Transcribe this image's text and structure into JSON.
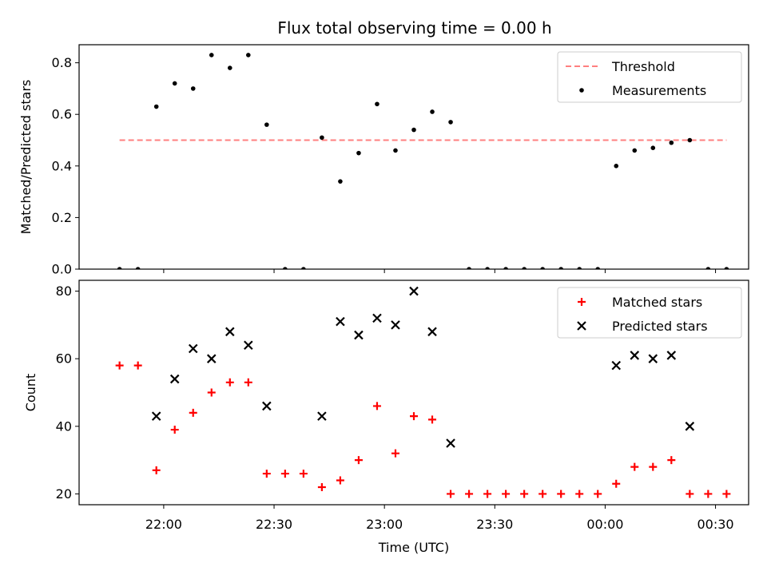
{
  "title": "Flux total observing time = 0.00 h",
  "colors": {
    "threshold": "#ff7f7f",
    "measurement": "#000000",
    "matched": "#ff0000",
    "predicted": "#000000"
  },
  "chart_data": [
    {
      "type": "scatter",
      "name": "ratio",
      "ylabel": "Matched/Predicted stars",
      "xlabel": "",
      "ylim": [
        0.0,
        0.87
      ],
      "yticks": [
        0.0,
        0.2,
        0.4,
        0.6,
        0.8
      ],
      "ytick_labels": [
        "0.0",
        "0.2",
        "0.4",
        "0.6",
        "0.8"
      ],
      "grid": false,
      "legend": "top-right",
      "threshold": {
        "name": "Threshold",
        "value": 0.5,
        "x_start": "21:48",
        "x_end": "00:33"
      },
      "series": [
        {
          "name": "Measurements",
          "x": [
            "21:48",
            "21:53",
            "21:58",
            "22:03",
            "22:08",
            "22:13",
            "22:18",
            "22:23",
            "22:28",
            "22:33",
            "22:38",
            "22:43",
            "22:48",
            "22:53",
            "22:58",
            "23:03",
            "23:08",
            "23:13",
            "23:18",
            "23:23",
            "23:28",
            "23:33",
            "23:38",
            "23:43",
            "23:48",
            "23:53",
            "23:58",
            "00:03",
            "00:08",
            "00:13",
            "00:18",
            "00:23",
            "00:28",
            "00:33"
          ],
          "values": [
            0.0,
            0.0,
            0.63,
            0.72,
            0.7,
            0.83,
            0.78,
            0.83,
            0.56,
            0.0,
            0.0,
            0.51,
            0.34,
            0.45,
            0.64,
            0.46,
            0.54,
            0.61,
            0.57,
            0.0,
            0.0,
            0.0,
            0.0,
            0.0,
            0.0,
            0.0,
            0.0,
            0.4,
            0.46,
            0.47,
            0.49,
            0.5,
            0.0,
            0.0
          ]
        }
      ]
    },
    {
      "type": "scatter",
      "name": "counts",
      "ylabel": "Count",
      "xlabel": "Time (UTC)",
      "ylim": [
        16.8,
        83.2
      ],
      "yticks": [
        20,
        40,
        60,
        80
      ],
      "ytick_labels": [
        "20",
        "40",
        "60",
        "80"
      ],
      "grid": false,
      "legend": "top-right",
      "series": [
        {
          "name": "Matched stars",
          "marker": "plus",
          "x": [
            "21:48",
            "21:53",
            "21:58",
            "22:03",
            "22:08",
            "22:13",
            "22:18",
            "22:23",
            "22:28",
            "22:33",
            "22:38",
            "22:43",
            "22:48",
            "22:53",
            "22:58",
            "23:03",
            "23:08",
            "23:13",
            "23:18",
            "23:23",
            "23:28",
            "23:33",
            "23:38",
            "23:43",
            "23:48",
            "23:53",
            "23:58",
            "00:03",
            "00:08",
            "00:13",
            "00:18",
            "00:23",
            "00:28",
            "00:33"
          ],
          "values": [
            58,
            58,
            27,
            39,
            44,
            50,
            53,
            53,
            26,
            26,
            26,
            22,
            24,
            30,
            46,
            32,
            43,
            42,
            20,
            20,
            20,
            20,
            20,
            20,
            20,
            20,
            20,
            23,
            28,
            28,
            30,
            20,
            20,
            20
          ]
        },
        {
          "name": "Predicted stars",
          "marker": "x",
          "x": [
            "21:58",
            "22:03",
            "22:08",
            "22:13",
            "22:18",
            "22:23",
            "22:28",
            "22:43",
            "22:48",
            "22:53",
            "22:58",
            "23:03",
            "23:08",
            "23:13",
            "23:18",
            "00:03",
            "00:08",
            "00:13",
            "00:18",
            "00:23"
          ],
          "values": [
            43,
            54,
            63,
            60,
            68,
            64,
            46,
            43,
            71,
            67,
            72,
            70,
            80,
            68,
            35,
            58,
            61,
            60,
            61,
            40
          ]
        }
      ]
    }
  ],
  "x_axis": {
    "range": [
      "21:37",
      "00:39"
    ],
    "ticks": [
      "22:00",
      "22:30",
      "23:00",
      "23:30",
      "00:00",
      "00:30"
    ],
    "tick_labels": [
      "22:00",
      "22:30",
      "23:00",
      "23:30",
      "00:00",
      "00:30"
    ]
  }
}
